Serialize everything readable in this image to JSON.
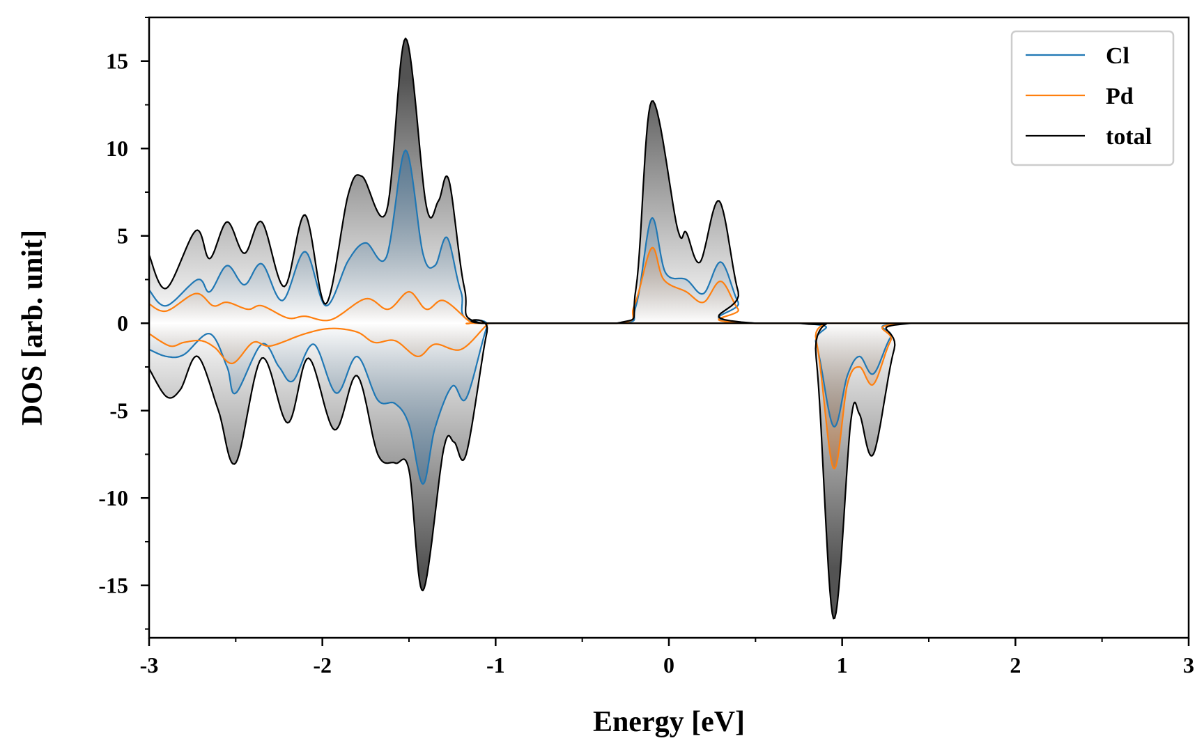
{
  "chart_data": {
    "type": "area",
    "xlabel": "Energy [eV]",
    "ylabel": "DOS [arb. unit]",
    "xlim": [
      -3,
      3
    ],
    "ylim": [
      -18,
      17.5
    ],
    "x_major_ticks": [
      -3,
      -2,
      -1,
      0,
      1,
      2,
      3
    ],
    "x_tick_labels": [
      "-3",
      "-2",
      "-1",
      "0",
      "1",
      "2",
      "3"
    ],
    "x_minor_step": 0.5,
    "y_major_ticks": [
      15,
      10,
      5,
      0,
      -5,
      -10,
      -15
    ],
    "y_tick_labels": [
      "15",
      "10",
      "5",
      "0",
      "-5",
      "-10",
      "-15"
    ],
    "y_minor_step": 2.5,
    "grid": false,
    "legend_position": "top-right",
    "legend": [
      {
        "name": "Cl",
        "color": "#1f77b4"
      },
      {
        "name": "Pd",
        "color": "#ff7f0e"
      },
      {
        "name": "total",
        "color": "#000000"
      }
    ],
    "series": [
      {
        "name": "Cl",
        "color": "#1f77b4",
        "fill_color": "#3b6f99",
        "spin_up": [
          [
            -3.0,
            1.9
          ],
          [
            -2.9,
            1.0
          ],
          [
            -2.72,
            2.5
          ],
          [
            -2.65,
            1.8
          ],
          [
            -2.55,
            3.3
          ],
          [
            -2.45,
            2.2
          ],
          [
            -2.35,
            3.4
          ],
          [
            -2.23,
            1.3
          ],
          [
            -2.1,
            4.1
          ],
          [
            -1.98,
            1.0
          ],
          [
            -1.85,
            3.6
          ],
          [
            -1.75,
            4.6
          ],
          [
            -1.63,
            3.8
          ],
          [
            -1.52,
            9.9
          ],
          [
            -1.42,
            4.0
          ],
          [
            -1.35,
            3.3
          ],
          [
            -1.28,
            4.9
          ],
          [
            -1.2,
            1.8
          ],
          [
            -1.1,
            0.0
          ],
          [
            -0.3,
            0.0
          ],
          [
            -0.19,
            1.0
          ],
          [
            -0.1,
            6.0
          ],
          [
            -0.02,
            2.9
          ],
          [
            0.1,
            2.5
          ],
          [
            0.2,
            1.7
          ],
          [
            0.3,
            3.5
          ],
          [
            0.4,
            1.2
          ],
          [
            0.5,
            0.0
          ],
          [
            3.0,
            0.0
          ]
        ],
        "spin_down": [
          [
            -3.0,
            -1.5
          ],
          [
            -2.9,
            -1.9
          ],
          [
            -2.8,
            -1.8
          ],
          [
            -2.65,
            -0.6
          ],
          [
            -2.55,
            -2.5
          ],
          [
            -2.5,
            -4.0
          ],
          [
            -2.35,
            -1.2
          ],
          [
            -2.25,
            -2.5
          ],
          [
            -2.17,
            -3.3
          ],
          [
            -2.05,
            -1.2
          ],
          [
            -1.92,
            -4.0
          ],
          [
            -1.8,
            -1.9
          ],
          [
            -1.68,
            -4.4
          ],
          [
            -1.58,
            -4.6
          ],
          [
            -1.5,
            -5.8
          ],
          [
            -1.42,
            -9.2
          ],
          [
            -1.35,
            -6.0
          ],
          [
            -1.25,
            -3.6
          ],
          [
            -1.17,
            -4.3
          ],
          [
            -1.05,
            -0.2
          ],
          [
            -1.0,
            0.0
          ],
          [
            0.75,
            0.0
          ],
          [
            0.85,
            -1.2
          ],
          [
            0.95,
            -5.9
          ],
          [
            1.03,
            -3.0
          ],
          [
            1.1,
            -1.9
          ],
          [
            1.18,
            -2.9
          ],
          [
            1.28,
            -0.8
          ],
          [
            1.38,
            0.0
          ],
          [
            3.0,
            0.0
          ]
        ]
      },
      {
        "name": "Pd",
        "color": "#ff7f0e",
        "fill_color": "#c26a24",
        "spin_up": [
          [
            -3.0,
            1.1
          ],
          [
            -2.9,
            0.7
          ],
          [
            -2.73,
            1.7
          ],
          [
            -2.63,
            1.0
          ],
          [
            -2.55,
            1.2
          ],
          [
            -2.43,
            0.8
          ],
          [
            -2.35,
            1.0
          ],
          [
            -2.2,
            0.3
          ],
          [
            -2.1,
            0.4
          ],
          [
            -1.95,
            0.2
          ],
          [
            -1.75,
            1.4
          ],
          [
            -1.62,
            0.8
          ],
          [
            -1.5,
            1.8
          ],
          [
            -1.4,
            0.8
          ],
          [
            -1.3,
            1.3
          ],
          [
            -1.15,
            0.1
          ],
          [
            -1.1,
            0.0
          ],
          [
            -0.3,
            0.0
          ],
          [
            -0.2,
            1.0
          ],
          [
            -0.1,
            4.3
          ],
          [
            -0.03,
            2.5
          ],
          [
            0.1,
            1.8
          ],
          [
            0.2,
            1.2
          ],
          [
            0.3,
            2.4
          ],
          [
            0.4,
            0.8
          ],
          [
            0.5,
            0.0
          ],
          [
            3.0,
            0.0
          ]
        ],
        "spin_down": [
          [
            -3.0,
            -0.6
          ],
          [
            -2.88,
            -1.3
          ],
          [
            -2.8,
            -1.1
          ],
          [
            -2.7,
            -1.0
          ],
          [
            -2.62,
            -1.4
          ],
          [
            -2.52,
            -2.3
          ],
          [
            -2.4,
            -1.1
          ],
          [
            -2.3,
            -1.3
          ],
          [
            -2.1,
            -0.6
          ],
          [
            -1.95,
            -0.3
          ],
          [
            -1.8,
            -0.5
          ],
          [
            -1.7,
            -1.1
          ],
          [
            -1.58,
            -1.0
          ],
          [
            -1.45,
            -1.9
          ],
          [
            -1.35,
            -1.2
          ],
          [
            -1.2,
            -1.5
          ],
          [
            -1.05,
            -0.1
          ],
          [
            -1.0,
            0.0
          ],
          [
            0.75,
            0.0
          ],
          [
            0.85,
            -1.0
          ],
          [
            0.95,
            -8.3
          ],
          [
            1.03,
            -3.5
          ],
          [
            1.1,
            -2.5
          ],
          [
            1.18,
            -3.5
          ],
          [
            1.28,
            -1.0
          ],
          [
            1.38,
            0.0
          ],
          [
            3.0,
            0.0
          ]
        ]
      },
      {
        "name": "total",
        "color": "#000000",
        "fill_color": "#4a4a4a",
        "spin_up": [
          [
            -3.0,
            3.9
          ],
          [
            -2.9,
            2.0
          ],
          [
            -2.73,
            5.3
          ],
          [
            -2.65,
            3.7
          ],
          [
            -2.55,
            5.8
          ],
          [
            -2.45,
            4.0
          ],
          [
            -2.35,
            5.8
          ],
          [
            -2.22,
            2.1
          ],
          [
            -2.1,
            6.2
          ],
          [
            -1.98,
            1.1
          ],
          [
            -1.85,
            7.4
          ],
          [
            -1.77,
            8.4
          ],
          [
            -1.63,
            6.4
          ],
          [
            -1.52,
            16.3
          ],
          [
            -1.4,
            6.7
          ],
          [
            -1.33,
            7.0
          ],
          [
            -1.27,
            8.2
          ],
          [
            -1.18,
            2.0
          ],
          [
            -1.08,
            0.0
          ],
          [
            -0.3,
            0.0
          ],
          [
            -0.19,
            2.0
          ],
          [
            -0.1,
            12.7
          ],
          [
            0.05,
            5.4
          ],
          [
            0.1,
            5.2
          ],
          [
            0.18,
            3.5
          ],
          [
            0.29,
            7.0
          ],
          [
            0.4,
            1.8
          ],
          [
            0.5,
            0.0
          ],
          [
            3.0,
            0.0
          ]
        ],
        "spin_down": [
          [
            -3.0,
            -2.6
          ],
          [
            -2.9,
            -4.2
          ],
          [
            -2.82,
            -3.8
          ],
          [
            -2.72,
            -1.9
          ],
          [
            -2.6,
            -5.0
          ],
          [
            -2.5,
            -8.0
          ],
          [
            -2.35,
            -2.0
          ],
          [
            -2.2,
            -5.7
          ],
          [
            -2.08,
            -2.0
          ],
          [
            -1.93,
            -6.1
          ],
          [
            -1.8,
            -3.0
          ],
          [
            -1.68,
            -7.5
          ],
          [
            -1.58,
            -8.0
          ],
          [
            -1.5,
            -8.4
          ],
          [
            -1.42,
            -15.3
          ],
          [
            -1.3,
            -7.2
          ],
          [
            -1.24,
            -6.8
          ],
          [
            -1.17,
            -7.5
          ],
          [
            -1.05,
            -0.5
          ],
          [
            -1.0,
            0.0
          ],
          [
            0.75,
            0.0
          ],
          [
            0.85,
            -2.0
          ],
          [
            0.95,
            -16.9
          ],
          [
            1.05,
            -5.6
          ],
          [
            1.1,
            -5.2
          ],
          [
            1.18,
            -7.5
          ],
          [
            1.3,
            -1.5
          ],
          [
            1.4,
            0.0
          ],
          [
            3.0,
            0.0
          ]
        ]
      }
    ]
  }
}
